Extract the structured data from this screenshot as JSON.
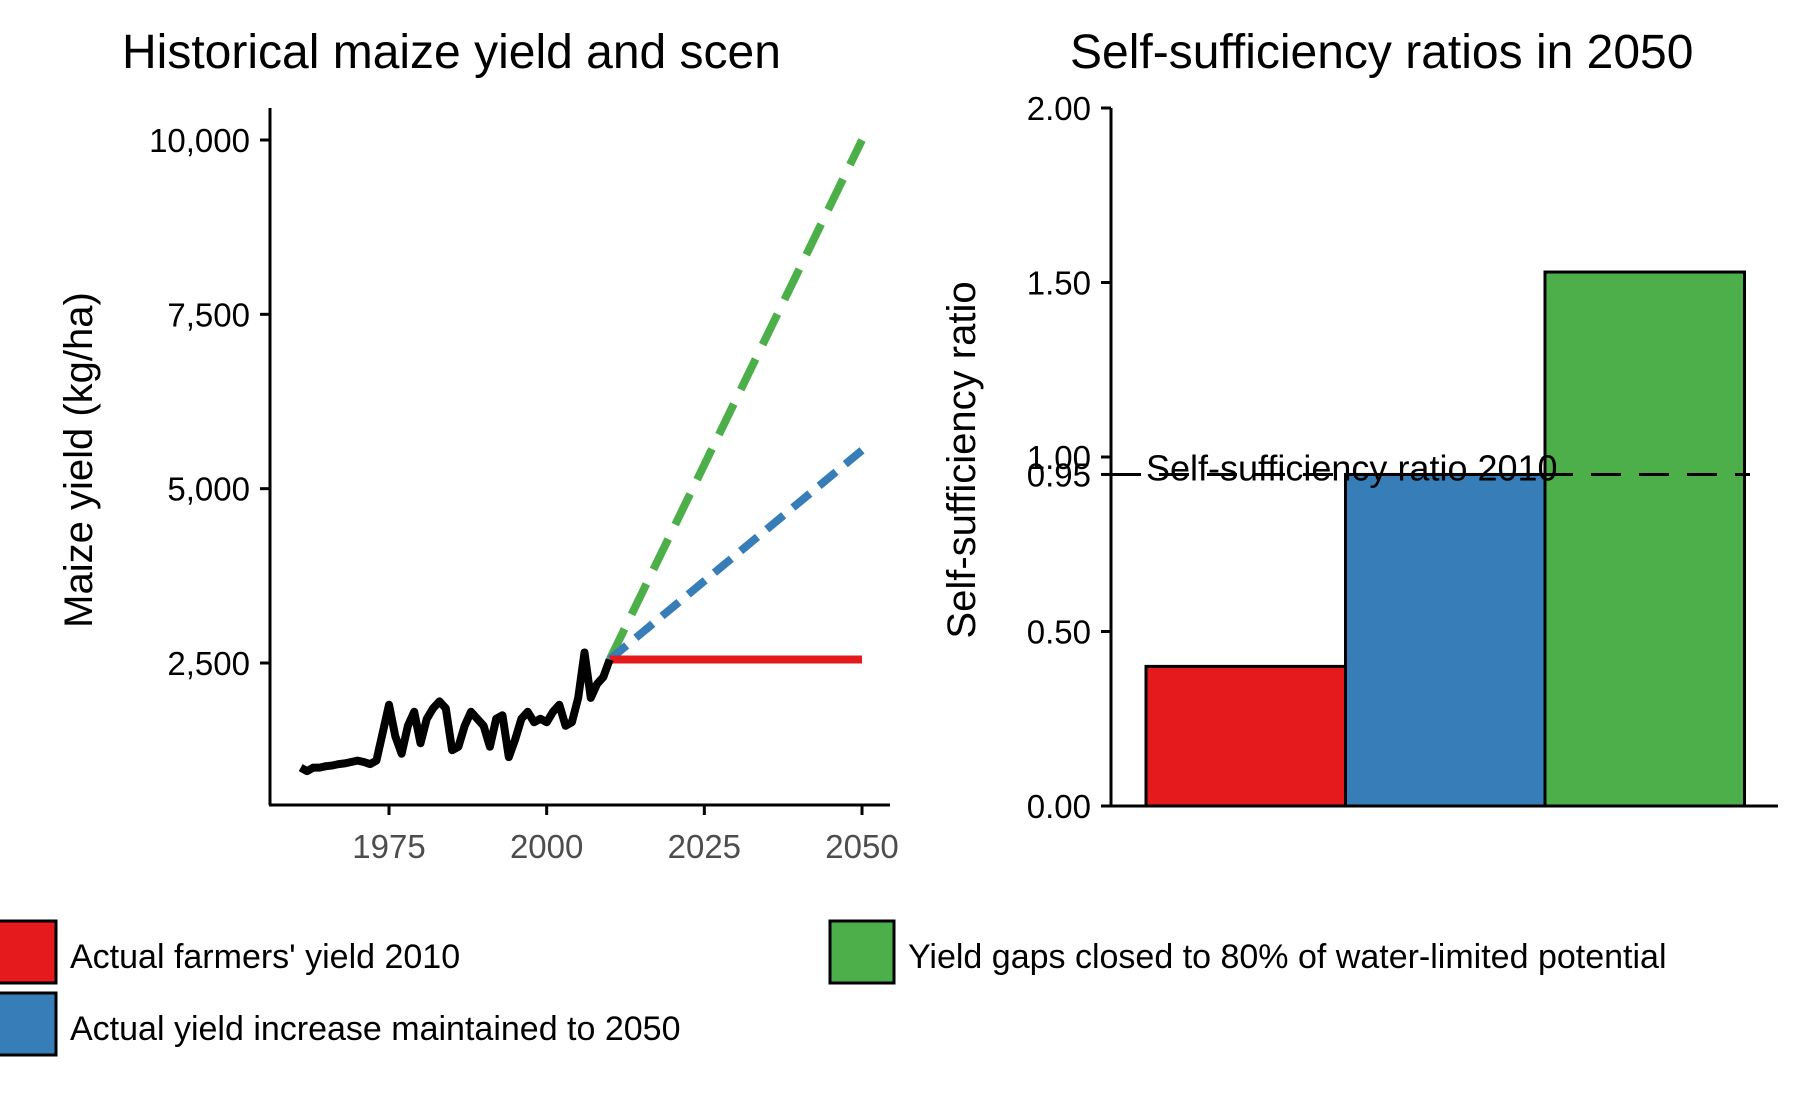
{
  "chart_data": [
    {
      "type": "line",
      "title": "Historical maize yield and scen",
      "xlabel": "",
      "ylabel": "Maize yield (kg/ha)",
      "xlim": [
        1961,
        2050
      ],
      "ylim": [
        600,
        10400
      ],
      "x_ticks": [
        1975,
        2000,
        2025,
        2050
      ],
      "y_ticks": [
        2500,
        5000,
        7500,
        10000
      ],
      "y_tick_labels": [
        "2,500",
        "5,000",
        "7,500",
        "10,000"
      ],
      "grid": false,
      "series": [
        {
          "color": "#000000",
          "style": "solid",
          "x": [
            1961,
            1962,
            1963,
            1964,
            1965,
            1966,
            1967,
            1968,
            1969,
            1970,
            1971,
            1972,
            1973,
            1974,
            1975,
            1976,
            1977,
            1978,
            1979,
            1980,
            1981,
            1982,
            1983,
            1984,
            1985,
            1986,
            1987,
            1988,
            1989,
            1990,
            1991,
            1992,
            1993,
            1994,
            1995,
            1996,
            1997,
            1998,
            1999,
            2000,
            2001,
            2002,
            2003,
            2004,
            2005,
            2006,
            2007,
            2008,
            2009,
            2010
          ],
          "y": [
            1000,
            950,
            1000,
            1000,
            1020,
            1030,
            1050,
            1060,
            1080,
            1100,
            1080,
            1050,
            1100,
            1500,
            1900,
            1450,
            1200,
            1600,
            1800,
            1350,
            1700,
            1850,
            1950,
            1850,
            1250,
            1300,
            1600,
            1800,
            1700,
            1600,
            1300,
            1700,
            1750,
            1150,
            1400,
            1700,
            1800,
            1650,
            1700,
            1650,
            1800,
            1900,
            1600,
            1650,
            2000,
            2650,
            2000,
            2200,
            2300,
            2550
          ]
        },
        {
          "color": "#e41a1c",
          "style": "solid",
          "x": [
            2010,
            2050
          ],
          "y": [
            2550,
            2550
          ]
        },
        {
          "color": "#377eb8",
          "style": "dashed",
          "x": [
            2010,
            2050
          ],
          "y": [
            2550,
            5550
          ]
        },
        {
          "color": "#4daf4a",
          "style": "dashed",
          "x": [
            2010,
            2050
          ],
          "y": [
            2550,
            10000
          ]
        }
      ]
    },
    {
      "type": "bar",
      "title": "Self-sufficiency ratios in 2050",
      "xlabel": "",
      "ylabel": "Self-sufficiency ratio",
      "ylim": [
        0,
        2.0
      ],
      "y_ticks": [
        0.0,
        0.5,
        0.95,
        1.0,
        1.5,
        2.0
      ],
      "y_tick_labels": [
        "0.00",
        "0.50",
        "0.95",
        "1.00",
        "1.50",
        "2.00"
      ],
      "grid": false,
      "values": [
        0.4,
        0.95,
        1.53
      ],
      "colors": [
        "#e41a1c",
        "#377eb8",
        "#4daf4a"
      ],
      "reference_line": {
        "value": 0.95,
        "label": "Self-sufficiency ratio 2010",
        "style": "dashed"
      }
    }
  ],
  "legend": {
    "placement": "bottom",
    "items": [
      {
        "label": "Actual farmers' yield 2010",
        "color": "#e41a1c"
      },
      {
        "label": "Actual yield increase maintained to 2050",
        "color": "#377eb8"
      },
      {
        "label": "Yield gaps closed to 80% of water-limited potential",
        "color": "#4daf4a"
      }
    ]
  }
}
